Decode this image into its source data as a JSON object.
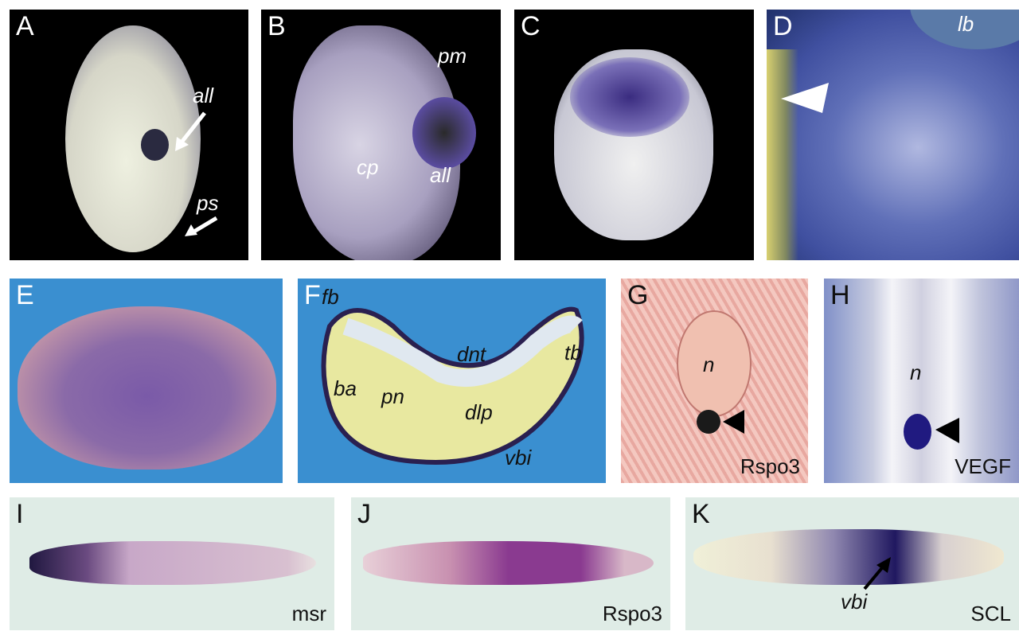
{
  "panels": [
    {
      "id": "A",
      "annotations": [
        "all",
        "ps"
      ]
    },
    {
      "id": "B",
      "annotations": [
        "pm",
        "cp",
        "all"
      ]
    },
    {
      "id": "C",
      "annotations": []
    },
    {
      "id": "D",
      "annotations": [
        "lb"
      ]
    },
    {
      "id": "E",
      "annotations": []
    },
    {
      "id": "F",
      "annotations": [
        "fb",
        "dnt",
        "tb",
        "ba",
        "pn",
        "dlp",
        "vbi"
      ]
    },
    {
      "id": "G",
      "annotations": [
        "n"
      ],
      "gene": "Rspo3"
    },
    {
      "id": "H",
      "annotations": [
        "n"
      ],
      "gene": "VEGF"
    },
    {
      "id": "I",
      "gene": "msr"
    },
    {
      "id": "J",
      "gene": "Rspo3"
    },
    {
      "id": "K",
      "annotations": [
        "vbi"
      ],
      "gene": "SCL"
    }
  ],
  "colors": {
    "stain": "#4a3a9a",
    "background_dark": "#000000",
    "background_blue": "#3a8fd0",
    "section_pink": "#e8a8a0",
    "whole_mount_bg": "#dfece6"
  }
}
